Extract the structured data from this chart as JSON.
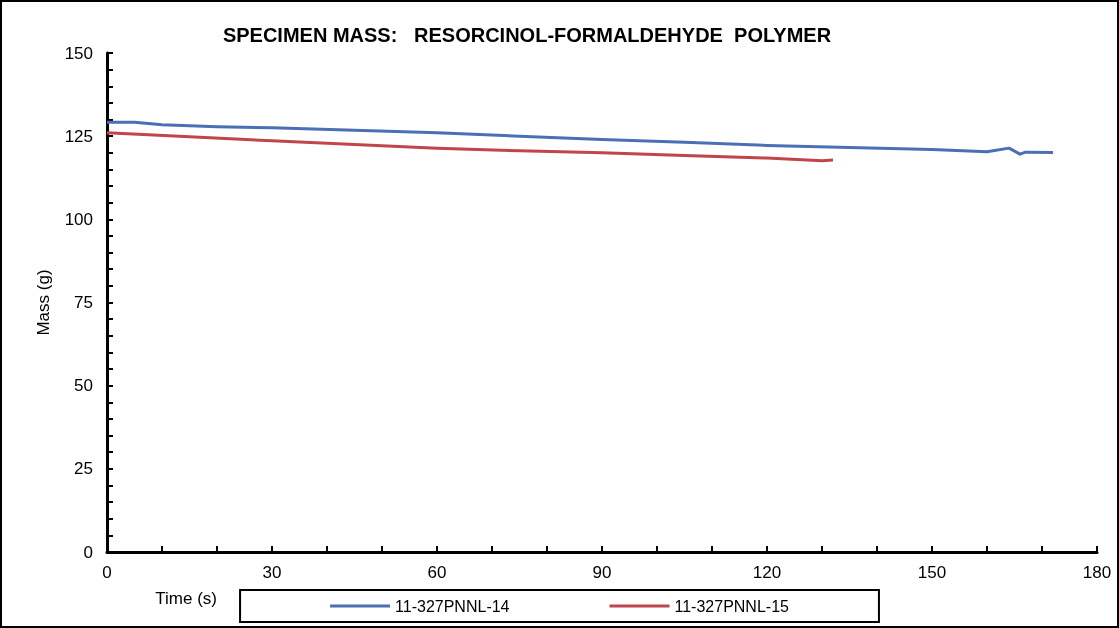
{
  "chart_data": {
    "type": "line",
    "title": "SPECIMEN MASS:   RESORCINOL-FORMALDEHYDE  POLYMER",
    "xlabel": "Time (s)",
    "ylabel": "Mass (g)",
    "xlim": [
      0,
      180
    ],
    "xticks": [
      0,
      {
        "value": 10,
        "label": null
      },
      {
        "value": 20,
        "label": null
      },
      30,
      {
        "value": 40,
        "label": null
      },
      {
        "value": 50,
        "label": null
      },
      60,
      {
        "value": 70,
        "label": null
      },
      {
        "value": 80,
        "label": null
      },
      90,
      {
        "value": 100,
        "label": null
      },
      {
        "value": 110,
        "label": null
      },
      120,
      {
        "value": 130,
        "label": null
      },
      {
        "value": 140,
        "label": null
      },
      150,
      {
        "value": 160,
        "label": null
      },
      {
        "value": 170,
        "label": null
      },
      180
    ],
    "ylim": [
      0,
      150
    ],
    "yticks": [
      0,
      {
        "value": 5,
        "label": null
      },
      {
        "value": 10,
        "label": null
      },
      {
        "value": 15,
        "label": null
      },
      {
        "value": 20,
        "label": null
      },
      25,
      {
        "value": 30,
        "label": null
      },
      {
        "value": 35,
        "label": null
      },
      {
        "value": 40,
        "label": null
      },
      {
        "value": 45,
        "label": null
      },
      50,
      {
        "value": 55,
        "label": null
      },
      {
        "value": 60,
        "label": null
      },
      {
        "value": 65,
        "label": null
      },
      {
        "value": 70,
        "label": null
      },
      75,
      {
        "value": 80,
        "label": null
      },
      {
        "value": 85,
        "label": null
      },
      {
        "value": 90,
        "label": null
      },
      {
        "value": 95,
        "label": null
      },
      100,
      {
        "value": 105,
        "label": null
      },
      {
        "value": 110,
        "label": null
      },
      {
        "value": 115,
        "label": null
      },
      {
        "value": 120,
        "label": null
      },
      125,
      {
        "value": 130,
        "label": null
      },
      {
        "value": 135,
        "label": null
      },
      {
        "value": 140,
        "label": null
      },
      {
        "value": 145,
        "label": null
      },
      150
    ],
    "grid": false,
    "legend": "bottom",
    "marker": "none",
    "line_style": "solid",
    "series": [
      {
        "name": "11-327PNNL-14",
        "color": "#4a6fb5",
        "x": [
          0,
          5,
          10,
          20,
          30,
          45,
          60,
          75,
          90,
          105,
          120,
          135,
          150,
          160,
          164,
          166,
          167,
          172
        ],
        "values": [
          129.2,
          129.2,
          128.4,
          127.8,
          127.5,
          126.8,
          126,
          125,
          124,
          123.2,
          122.2,
          121.6,
          121,
          120.3,
          121.4,
          119.6,
          120.2,
          120.1
        ]
      },
      {
        "name": "11-327PNNL-15",
        "color": "#c0464b",
        "x": [
          0,
          15,
          30,
          45,
          60,
          75,
          90,
          105,
          120,
          130,
          132
        ],
        "values": [
          126,
          124.8,
          123.6,
          122.5,
          121.4,
          120.6,
          120,
          119.2,
          118.4,
          117.6,
          117.8
        ]
      }
    ]
  }
}
